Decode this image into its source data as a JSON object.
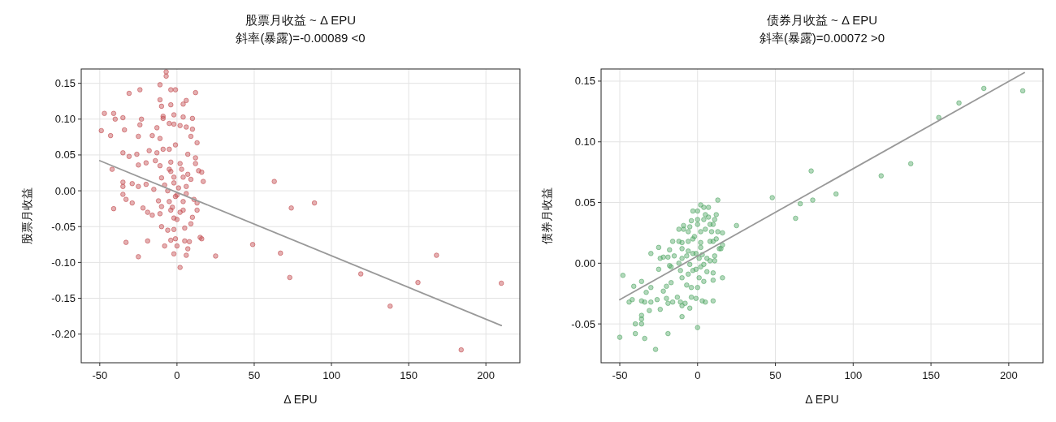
{
  "chart_data": [
    {
      "type": "scatter",
      "title": "股票月收益 ~ Δ EPU",
      "subtitle": "斜率(暴露)=-0.00089 <0",
      "xlabel": "Δ EPU",
      "ylabel": "股票月收益",
      "xlim": [
        -62,
        222
      ],
      "ylim": [
        -0.24,
        0.17
      ],
      "xticks": [
        -50,
        0,
        50,
        100,
        150,
        200
      ],
      "yticks": [
        {
          "value": 0.15,
          "label": "0.15"
        },
        {
          "value": 0.1,
          "label": "0.10"
        },
        {
          "value": 0.05,
          "label": "0.05"
        },
        {
          "value": 0,
          "label": "0.00"
        },
        {
          "value": -0.05,
          "label": "-0.05"
        },
        {
          "value": -0.1,
          "label": "-0.10"
        },
        {
          "value": -0.15,
          "label": "-0.15"
        },
        {
          "value": -0.2,
          "label": "-0.20"
        }
      ],
      "grid": true,
      "series": [
        {
          "marker": "circle",
          "color": "#c44e52",
          "x": [
            -7,
            -7,
            -11,
            -31,
            -24,
            -4,
            -1,
            12,
            -11,
            -4,
            4,
            6,
            -10,
            -47,
            -41,
            -40,
            -35,
            -23,
            -24,
            -9,
            -9,
            -2,
            4,
            10,
            -49,
            -43,
            -34,
            -25,
            -16,
            -13,
            -11,
            -5,
            -2,
            2,
            6,
            10,
            9,
            13,
            -35,
            -31,
            -26,
            -18,
            -9,
            -13,
            -5,
            -1,
            7,
            12,
            -42,
            -25,
            -20,
            -14,
            -11,
            -5,
            2,
            12,
            14,
            16,
            -35,
            -35,
            -29,
            -25,
            -20,
            -15,
            -10,
            -8,
            -2,
            6,
            9,
            17,
            -35,
            -33,
            -29,
            -41,
            -22,
            -19,
            -16,
            -12,
            -10,
            -5,
            0,
            4,
            11,
            13,
            13,
            -11,
            -4,
            -2,
            0,
            4,
            10,
            -10,
            -6,
            -2,
            5,
            9,
            -33,
            -19,
            -8,
            -4,
            -1,
            5,
            8,
            15,
            16,
            0,
            -25,
            -2,
            7,
            6,
            2,
            -4,
            -2,
            1,
            4,
            -1,
            -3,
            2,
            6,
            -6,
            3,
            -4,
            7,
            25,
            63,
            74,
            89,
            49,
            67,
            73,
            119,
            138,
            156,
            168,
            210,
            184
          ],
          "values": [
            0.166,
            0.16,
            0.148,
            0.136,
            0.141,
            0.141,
            0.141,
            0.137,
            0.127,
            0.12,
            0.121,
            0.126,
            0.118,
            0.108,
            0.108,
            0.1,
            0.102,
            0.1,
            0.092,
            0.104,
            0.101,
            0.106,
            0.103,
            0.101,
            0.084,
            0.077,
            0.085,
            0.076,
            0.077,
            0.088,
            0.073,
            0.094,
            0.093,
            0.091,
            0.089,
            0.086,
            0.076,
            0.067,
            0.053,
            0.048,
            0.051,
            0.056,
            0.058,
            0.053,
            0.058,
            0.064,
            0.051,
            0.046,
            0.03,
            0.036,
            0.039,
            0.042,
            0.035,
            0.03,
            0.038,
            0.038,
            0.028,
            0.026,
            0.012,
            0.006,
            0.01,
            0.006,
            0.009,
            0.002,
            0.018,
            0.008,
            0.019,
            0.006,
            0.016,
            0.013,
            -0.005,
            -0.012,
            -0.017,
            -0.025,
            -0.024,
            -0.03,
            -0.034,
            -0.014,
            -0.022,
            -0.015,
            -0.006,
            -0.015,
            -0.012,
            -0.017,
            -0.027,
            -0.032,
            -0.027,
            -0.038,
            -0.04,
            -0.027,
            -0.037,
            -0.05,
            -0.055,
            -0.054,
            -0.052,
            -0.046,
            -0.072,
            -0.07,
            -0.077,
            -0.069,
            -0.067,
            -0.07,
            -0.071,
            -0.065,
            -0.067,
            -0.077,
            -0.092,
            -0.088,
            -0.081,
            -0.09,
            -0.107,
            0.027,
            0.011,
            0.004,
            0.019,
            -0.008,
            -0.023,
            -0.03,
            -0.004,
            0.0,
            0.03,
            0.04,
            0.023,
            -0.091,
            0.013,
            -0.024,
            -0.017,
            -0.075,
            -0.087,
            -0.121,
            -0.116,
            -0.161,
            -0.128,
            -0.09,
            -0.129,
            -0.222
          ]
        },
        {
          "type": "line",
          "marker": "none",
          "color": "#999999",
          "x": [
            -50,
            210
          ],
          "values": [
            0.042,
            -0.188
          ]
        }
      ]
    },
    {
      "type": "scatter",
      "title": "债券月收益 ~ Δ EPU",
      "subtitle": "斜率(暴露)=0.00072 >0",
      "xlabel": "Δ EPU",
      "ylabel": "债券月收益",
      "xlim": [
        -62,
        222
      ],
      "ylim": [
        -0.082,
        0.16
      ],
      "xticks": [
        -50,
        0,
        50,
        100,
        150,
        200
      ],
      "yticks": [
        {
          "value": 0.15,
          "label": "0.15"
        },
        {
          "value": 0.1,
          "label": "0.10"
        },
        {
          "value": 0.05,
          "label": "0.05"
        },
        {
          "value": 0,
          "label": "0.00"
        },
        {
          "value": -0.05,
          "label": "-0.05"
        }
      ],
      "grid": true,
      "series": [
        {
          "marker": "circle",
          "color": "#55a868",
          "x": [
            2,
            4,
            7,
            13,
            0,
            -3,
            5,
            12,
            11,
            -4,
            0,
            4,
            7,
            -9,
            -5,
            -12,
            -9,
            0,
            10,
            8,
            25,
            13,
            16,
            -16,
            -12,
            -10,
            -6,
            2,
            5,
            9,
            12,
            8,
            16,
            -30,
            -25,
            -18,
            -24,
            -22,
            -19,
            -15,
            -10,
            -6,
            -3,
            2,
            10,
            14,
            15,
            11,
            -25,
            -18,
            -17,
            -12,
            -10,
            -7,
            -1,
            3,
            8,
            11,
            -48,
            -36,
            -41,
            -30,
            -33,
            -20,
            -17,
            -22,
            -11,
            -10,
            -6,
            -3,
            2,
            6,
            10,
            16,
            -7,
            -4,
            0,
            4,
            10,
            -44,
            -42,
            -36,
            -34,
            -30,
            -26,
            -20,
            -19,
            -16,
            -13,
            -11,
            -10,
            -8,
            -5,
            -4,
            -1,
            3,
            5,
            10,
            -31,
            -24,
            -10,
            -36,
            -36,
            -36,
            -40,
            -50,
            -40,
            -34,
            -19,
            -27,
            0,
            48,
            -3,
            1,
            4,
            -1,
            -5,
            2,
            -2,
            6,
            1,
            -6,
            63,
            66,
            74,
            73,
            89,
            118,
            137,
            155,
            168,
            184,
            209
          ],
          "values": [
            0.048,
            0.046,
            0.046,
            0.052,
            0.043,
            0.043,
            0.04,
            0.04,
            0.036,
            0.035,
            0.036,
            0.036,
            0.038,
            0.031,
            0.03,
            0.028,
            0.028,
            0.032,
            0.032,
            0.032,
            0.031,
            0.026,
            0.025,
            0.018,
            0.018,
            0.017,
            0.026,
            0.026,
            0.028,
            0.026,
            0.02,
            0.018,
            0.015,
            0.008,
            0.013,
            0.011,
            0.004,
            0.005,
            0.005,
            0.006,
            0.012,
            0.018,
            0.02,
            0.017,
            0.018,
            0.012,
            0.012,
            0.006,
            -0.005,
            -0.002,
            -0.003,
            0.0,
            0.004,
            0.006,
            0.008,
            0.007,
            0.002,
            0.002,
            -0.01,
            -0.015,
            -0.019,
            -0.02,
            -0.024,
            -0.019,
            -0.016,
            -0.023,
            -0.006,
            -0.012,
            -0.009,
            -0.006,
            -0.003,
            -0.007,
            -0.008,
            -0.012,
            -0.018,
            -0.02,
            -0.02,
            -0.015,
            -0.014,
            -0.032,
            -0.03,
            -0.031,
            -0.032,
            -0.032,
            -0.03,
            -0.029,
            -0.033,
            -0.032,
            -0.028,
            -0.032,
            -0.035,
            -0.033,
            -0.037,
            -0.028,
            -0.029,
            -0.031,
            -0.032,
            -0.031,
            -0.039,
            -0.038,
            -0.044,
            -0.043,
            -0.046,
            -0.05,
            -0.05,
            -0.061,
            -0.058,
            -0.062,
            -0.058,
            -0.071,
            -0.053,
            0.054,
            0.008,
            0.004,
            -0.001,
            -0.005,
            -0.001,
            0.013,
            0.022,
            0.004,
            -0.012,
            0.01,
            0.037,
            0.049,
            0.052,
            0.076,
            0.057,
            0.072,
            0.082,
            0.12,
            0.132,
            0.144,
            0.142
          ]
        },
        {
          "type": "line",
          "marker": "none",
          "color": "#999999",
          "x": [
            -50,
            210
          ],
          "values": [
            -0.03,
            0.157
          ]
        }
      ]
    }
  ]
}
